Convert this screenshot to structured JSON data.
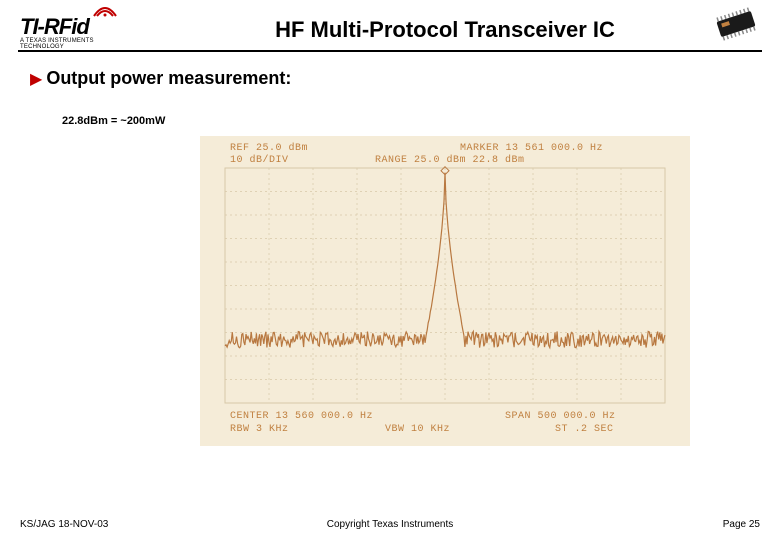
{
  "header": {
    "logo": {
      "text_left": "TI-",
      "text_right": "RFid",
      "subtitle": "A TEXAS INSTRUMENTS TECHNOLOGY",
      "arc_color": "#c00000"
    },
    "title": "HF Multi-Protocol Transceiver IC",
    "chip": {
      "body_color": "#1a1a1a",
      "label_color": "#c08040"
    }
  },
  "bullet": {
    "arrow_color": "#c00000",
    "text": "Output power measurement:"
  },
  "annotation": "22.8dBm = ~200mW",
  "analyzer": {
    "paper_color": "#f5ecd8",
    "grid_color": "#d8c8a8",
    "trace_color": "#b87840",
    "text_color": "#c08040",
    "top_left_1": "REF 25.0 dBm",
    "top_left_2": "10 dB/DIV",
    "top_right_1": "MARKER 13 561 000.0 Hz",
    "top_right_2": "RANGE 25.0 dBm     22.8 dBm",
    "bottom_left_1": "CENTER 13 560 000.0 Hz",
    "bottom_left_2": "RBW 3 KHz",
    "bottom_mid_2": "VBW 10 KHz",
    "bottom_right_1": "SPAN 500 000.0 Hz",
    "bottom_right_2": "ST .2 SEC",
    "grid": {
      "cols": 10,
      "rows": 10
    },
    "noise_floor_div": 7.3,
    "noise_amp_div": 0.35,
    "peak_div": 0.2,
    "peak_x": 0.5,
    "peak_half_width": 0.015
  },
  "footer": {
    "left": "KS/JAG 18-NOV-03",
    "center": "Copyright Texas Instruments",
    "right": "Page 25"
  }
}
